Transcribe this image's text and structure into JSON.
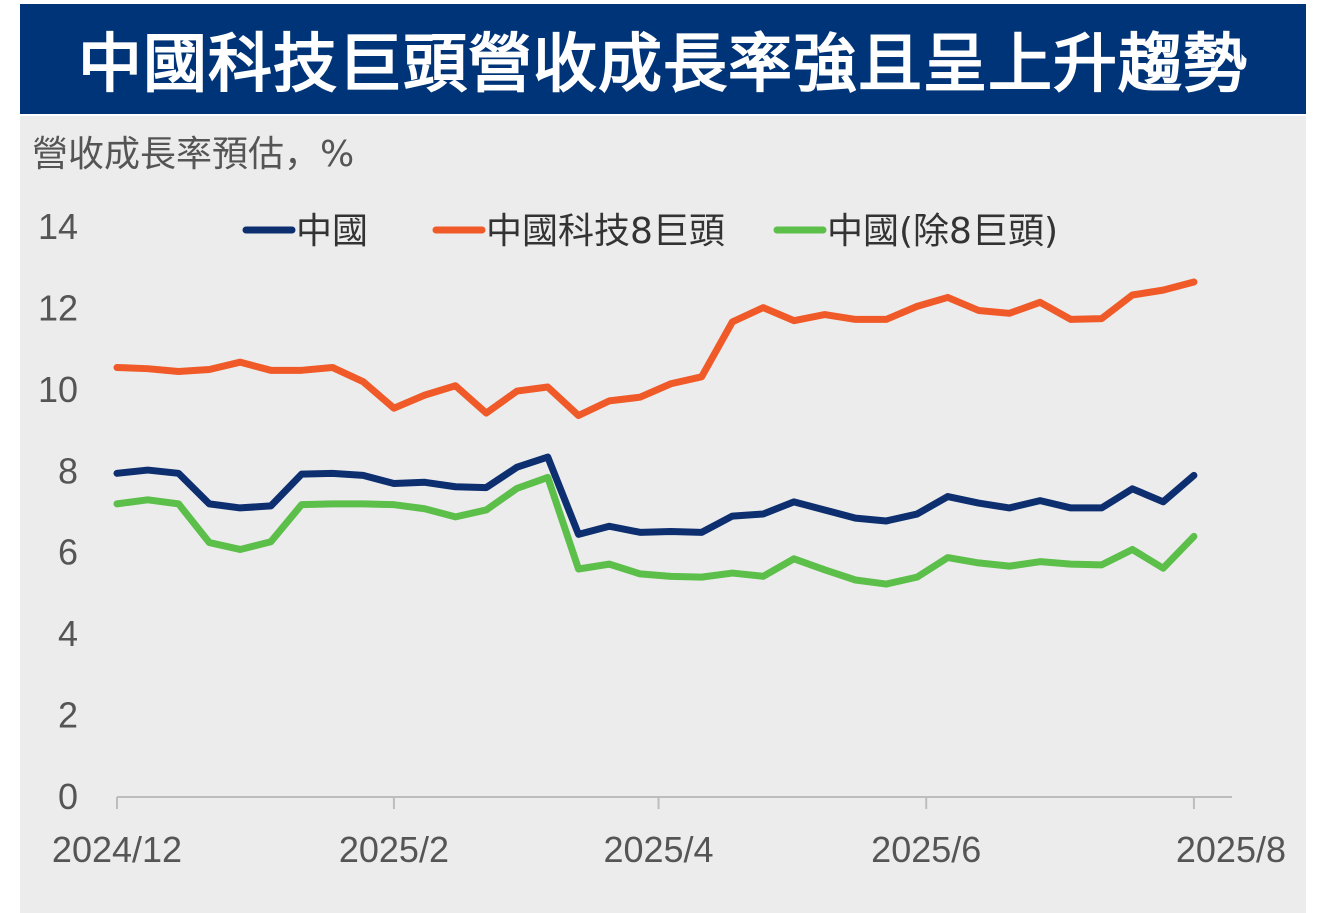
{
  "title": "中國科技巨頭營收成長率強且呈上升趨勢",
  "colors": {
    "title_bg": "#003478",
    "panel_bg": "#ececec",
    "china": "#0d2f6f",
    "tech8": "#f05a28",
    "ex8": "#5cbf4a"
  },
  "chart_data": {
    "type": "line",
    "ylabel": "營收成長率預估，%",
    "ylim": [
      0,
      14
    ],
    "yticks": [
      0,
      2,
      4,
      6,
      8,
      10,
      12,
      14
    ],
    "xlim": [
      0,
      36.4
    ],
    "xticks": [
      {
        "pos": 0,
        "label": "2024/12"
      },
      {
        "pos": 9,
        "label": "2025/2"
      },
      {
        "pos": 17.6,
        "label": "2025/4"
      },
      {
        "pos": 26.3,
        "label": "2025/6"
      },
      {
        "pos": 35,
        "label": "2025/8"
      }
    ],
    "legend_position": "top",
    "series": [
      {
        "name": "中國",
        "color": "#0d2f6f",
        "values": [
          7.95,
          8.03,
          7.95,
          7.2,
          7.1,
          7.15,
          7.93,
          7.95,
          7.9,
          7.7,
          7.73,
          7.62,
          7.6,
          8.1,
          8.35,
          6.45,
          6.65,
          6.5,
          6.52,
          6.5,
          6.9,
          6.95,
          7.25,
          7.05,
          6.85,
          6.78,
          6.95,
          7.38,
          7.22,
          7.1,
          7.28,
          7.1,
          7.1,
          7.57,
          7.25,
          7.9
        ]
      },
      {
        "name": "中國科技8巨頭",
        "color": "#f05a28",
        "values": [
          10.55,
          10.52,
          10.45,
          10.5,
          10.68,
          10.48,
          10.48,
          10.55,
          10.2,
          9.55,
          9.87,
          10.1,
          9.43,
          9.97,
          10.07,
          9.37,
          9.73,
          9.82,
          10.15,
          10.32,
          11.67,
          12.02,
          11.7,
          11.85,
          11.73,
          11.73,
          12.05,
          12.27,
          11.95,
          11.88,
          12.15,
          11.73,
          11.75,
          12.33,
          12.45,
          12.65
        ]
      },
      {
        "name": "中國(除8巨頭)",
        "color": "#5cbf4a",
        "values": [
          7.2,
          7.3,
          7.2,
          6.25,
          6.08,
          6.27,
          7.18,
          7.2,
          7.2,
          7.18,
          7.08,
          6.88,
          7.05,
          7.58,
          7.85,
          5.6,
          5.72,
          5.48,
          5.42,
          5.4,
          5.5,
          5.42,
          5.85,
          5.58,
          5.33,
          5.23,
          5.4,
          5.88,
          5.75,
          5.67,
          5.78,
          5.72,
          5.7,
          6.08,
          5.62,
          6.4
        ]
      }
    ]
  }
}
